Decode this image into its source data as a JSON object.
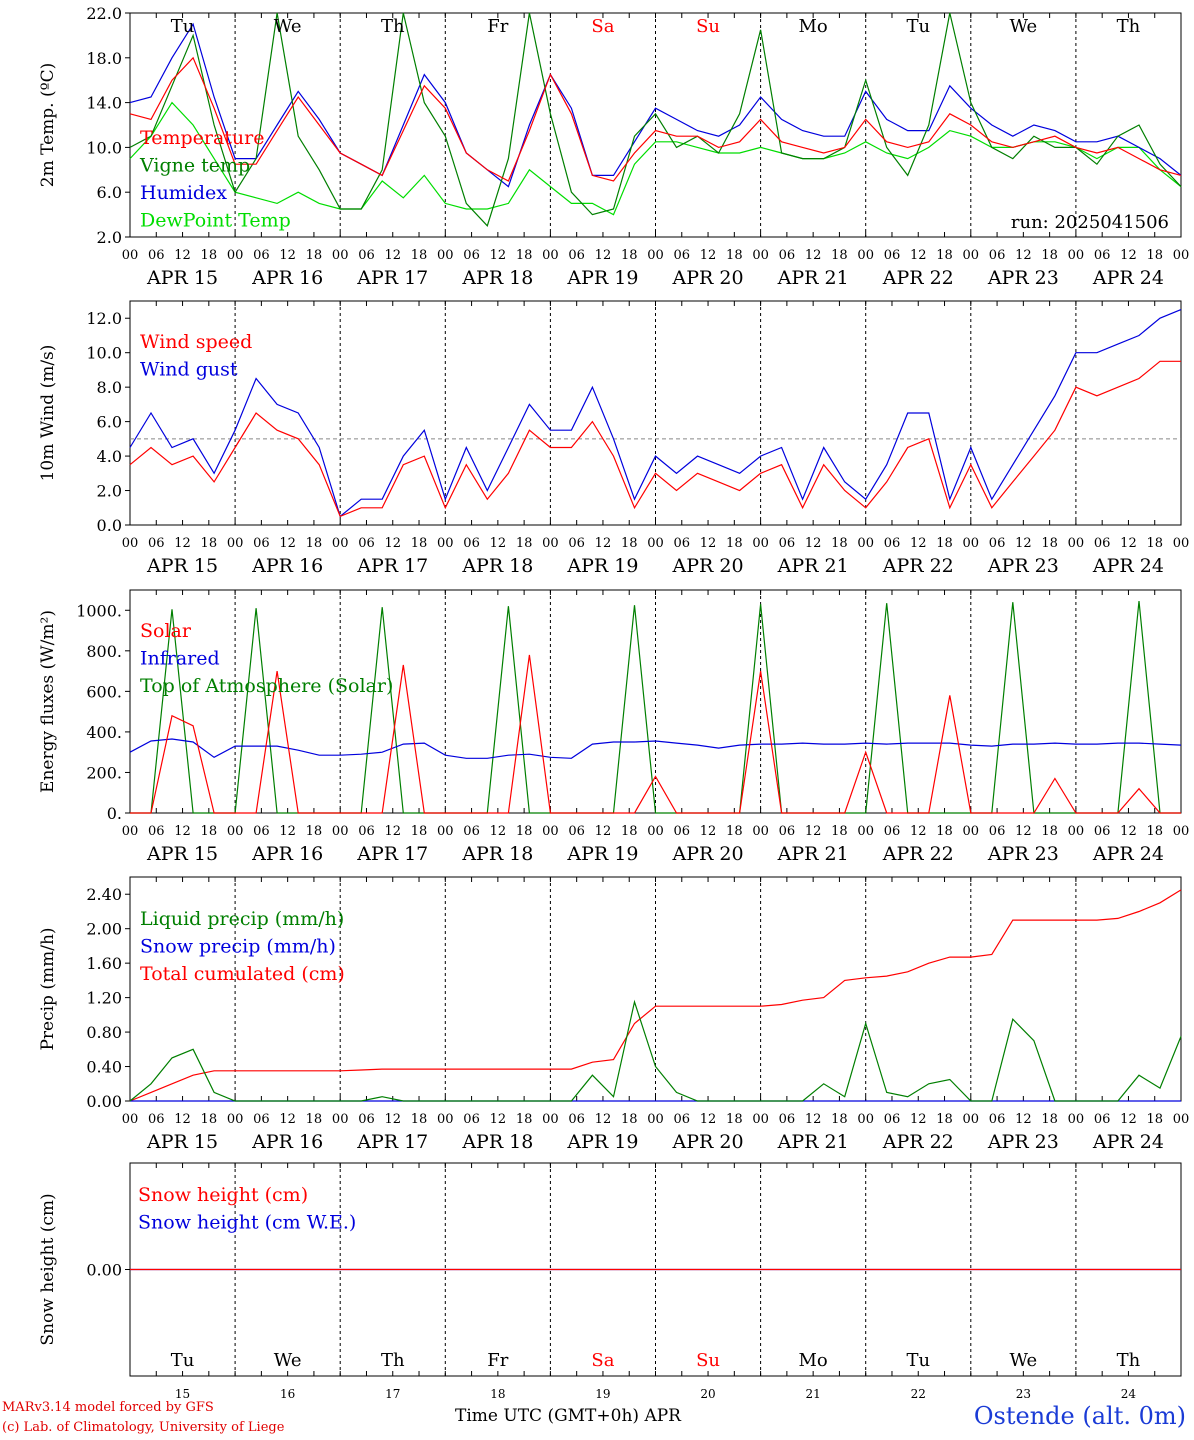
{
  "run_label": "run: 2025041506",
  "days": [
    "Tu",
    "We",
    "Th",
    "Fr",
    "Sa",
    "Su",
    "Mo",
    "Tu",
    "We",
    "Th"
  ],
  "weekend_indices": [
    4,
    5
  ],
  "day_numbers": [
    "15",
    "16",
    "17",
    "18",
    "19",
    "20",
    "21",
    "22",
    "23",
    "24"
  ],
  "date_labels": [
    "APR 15",
    "APR 16",
    "APR 17",
    "APR 18",
    "APR 19",
    "APR 20",
    "APR 21",
    "APR 22",
    "APR 23",
    "APR 24"
  ],
  "hour_ticks": [
    "00",
    "06",
    "12",
    "18"
  ],
  "last_hour": "00",
  "x_axis_title": "Time UTC (GMT+0h)",
  "x_axis_month": "APR",
  "credit_line1": "MARv3.14 model forced by GFS",
  "credit_line2": "(c) Lab. of Climatology, University of Liege",
  "station": "Ostende (alt. 0m)",
  "colors": {
    "red": "#ff0000",
    "green": "#007f00",
    "blue": "#0000dd",
    "lightgreen": "#00dd00",
    "weekend": "#ff0000"
  },
  "chart_data": [
    {
      "type": "line",
      "ylabel": "2m Temp. (ºC)",
      "ylim": [
        2,
        22
      ],
      "yticks": [
        "2.0",
        "6.0",
        "10.0",
        "14.0",
        "18.0",
        "22.0"
      ],
      "ytick_values": [
        2,
        6,
        10,
        14,
        18,
        22
      ],
      "legend_placement": "top-left",
      "x_hours_step": 6,
      "series": [
        {
          "name": "Temperature",
          "color": "red",
          "values": [
            13.0,
            12.5,
            16.0,
            18.0,
            13.5,
            8.5,
            8.5,
            11.5,
            14.5,
            12.0,
            9.5,
            8.5,
            7.5,
            11.5,
            15.5,
            13.5,
            9.5,
            8.0,
            7.0,
            11.5,
            16.5,
            13.0,
            7.5,
            7.0,
            9.5,
            11.5,
            11.0,
            11.0,
            10.0,
            10.5,
            12.5,
            10.5,
            10.0,
            9.5,
            10.0,
            12.5,
            10.5,
            10.0,
            10.5,
            13.0,
            12.0,
            10.5,
            10.0,
            10.5,
            11.0,
            10.0,
            9.5,
            10.0,
            9.0,
            8.0,
            7.5
          ]
        },
        {
          "name": "Vigne temp",
          "color": "green",
          "values": [
            10.0,
            11.0,
            15.5,
            20.0,
            12.0,
            6.0,
            9.0,
            22.0,
            11.0,
            8.0,
            4.5,
            4.5,
            8.0,
            22.0,
            14.0,
            11.0,
            5.0,
            3.0,
            9.0,
            22.0,
            13.0,
            6.0,
            4.0,
            4.5,
            11.0,
            13.0,
            10.0,
            11.0,
            9.5,
            13.0,
            20.5,
            9.5,
            9.0,
            9.0,
            10.0,
            16.0,
            10.0,
            7.5,
            12.0,
            22.0,
            14.0,
            10.0,
            9.0,
            11.0,
            10.0,
            10.0,
            8.5,
            11.0,
            12.0,
            8.5,
            6.5
          ]
        },
        {
          "name": "Humidex",
          "color": "blue",
          "values": [
            14.0,
            14.5,
            18.0,
            21.0,
            14.5,
            9.0,
            9.0,
            12.0,
            15.0,
            12.5,
            9.5,
            8.5,
            7.5,
            12.0,
            16.5,
            14.0,
            9.5,
            8.0,
            6.5,
            12.0,
            16.5,
            13.5,
            7.5,
            7.5,
            10.5,
            13.5,
            12.5,
            11.5,
            11.0,
            12.0,
            14.5,
            12.5,
            11.5,
            11.0,
            11.0,
            15.0,
            12.5,
            11.5,
            11.5,
            15.5,
            13.5,
            12.0,
            11.0,
            12.0,
            11.5,
            10.5,
            10.5,
            11.0,
            10.0,
            9.0,
            7.5
          ]
        },
        {
          "name": "DewPoint Temp",
          "color": "lightgreen",
          "values": [
            9.0,
            11.0,
            14.0,
            12.0,
            9.0,
            6.0,
            5.5,
            5.0,
            6.0,
            5.0,
            4.5,
            4.5,
            7.0,
            5.5,
            7.5,
            5.0,
            4.5,
            4.5,
            5.0,
            8.0,
            6.5,
            5.0,
            5.0,
            4.0,
            8.5,
            10.5,
            10.5,
            10.0,
            9.5,
            9.5,
            10.0,
            9.5,
            9.0,
            9.0,
            9.5,
            10.5,
            9.5,
            9.0,
            10.0,
            11.5,
            11.0,
            10.0,
            10.0,
            10.5,
            10.5,
            10.0,
            9.0,
            10.0,
            10.0,
            8.0,
            6.5
          ]
        }
      ]
    },
    {
      "type": "line",
      "ylabel": "10m Wind (m/s)",
      "ylim": [
        0,
        13
      ],
      "yticks": [
        "0.0",
        "2.0",
        "4.0",
        "6.0",
        "8.0",
        "10.0",
        "12.0"
      ],
      "ytick_values": [
        0,
        2,
        4,
        6,
        8,
        10,
        12
      ],
      "reference_line": 5.0,
      "legend_placement": "top-left",
      "x_hours_step": 6,
      "series": [
        {
          "name": "Wind speed",
          "color": "red",
          "values": [
            3.5,
            4.5,
            3.5,
            4.0,
            2.5,
            4.5,
            6.5,
            5.5,
            5.0,
            3.5,
            0.5,
            1.0,
            1.0,
            3.5,
            4.0,
            1.0,
            3.5,
            1.5,
            3.0,
            5.5,
            4.5,
            4.5,
            6.0,
            4.0,
            1.0,
            3.0,
            2.0,
            3.0,
            2.5,
            2.0,
            3.0,
            3.5,
            1.0,
            3.5,
            2.0,
            1.0,
            2.5,
            4.5,
            5.0,
            1.0,
            3.5,
            1.0,
            2.5,
            4.0,
            5.5,
            8.0,
            7.5,
            8.0,
            8.5,
            9.5,
            9.5
          ]
        },
        {
          "name": "Wind gust",
          "color": "blue",
          "values": [
            4.5,
            6.5,
            4.5,
            5.0,
            3.0,
            5.5,
            8.5,
            7.0,
            6.5,
            4.5,
            0.5,
            1.5,
            1.5,
            4.0,
            5.5,
            1.5,
            4.5,
            2.0,
            4.5,
            7.0,
            5.5,
            5.5,
            8.0,
            5.0,
            1.5,
            4.0,
            3.0,
            4.0,
            3.5,
            3.0,
            4.0,
            4.5,
            1.5,
            4.5,
            2.5,
            1.5,
            3.5,
            6.5,
            6.5,
            1.5,
            4.5,
            1.5,
            3.5,
            5.5,
            7.5,
            10.0,
            10.0,
            10.5,
            11.0,
            12.0,
            12.5
          ]
        }
      ]
    },
    {
      "type": "line",
      "ylabel": "Energy fluxes (W/m²)",
      "ylim": [
        0,
        1100
      ],
      "yticks": [
        "0.",
        "200.",
        "400.",
        "600.",
        "800.",
        "1000."
      ],
      "ytick_values": [
        0,
        200,
        400,
        600,
        800,
        1000
      ],
      "legend_placement": "top-left",
      "x_hours_step": 6,
      "series": [
        {
          "name": "Solar",
          "color": "red",
          "values": [
            0,
            0,
            480,
            430,
            0,
            0,
            0,
            700,
            0,
            0,
            0,
            0,
            0,
            730,
            0,
            0,
            0,
            0,
            0,
            780,
            0,
            0,
            0,
            0,
            0,
            180,
            0,
            0,
            0,
            0,
            700,
            0,
            0,
            0,
            0,
            300,
            0,
            0,
            0,
            580,
            0,
            0,
            0,
            0,
            170,
            0,
            0,
            0,
            120,
            0,
            0
          ]
        },
        {
          "name": "Infrared",
          "color": "blue",
          "values": [
            300,
            355,
            365,
            350,
            275,
            330,
            330,
            330,
            310,
            285,
            285,
            290,
            300,
            340,
            345,
            285,
            270,
            270,
            285,
            290,
            275,
            270,
            340,
            350,
            350,
            355,
            345,
            335,
            320,
            335,
            340,
            340,
            345,
            340,
            340,
            345,
            340,
            345,
            345,
            345,
            335,
            330,
            340,
            340,
            345,
            340,
            340,
            345,
            345,
            340,
            335
          ]
        },
        {
          "name": "Top of Atmosphere (Solar)",
          "color": "green",
          "values": [
            0,
            0,
            1005,
            0,
            0,
            0,
            1010,
            0,
            0,
            0,
            0,
            0,
            1015,
            0,
            0,
            0,
            0,
            0,
            1020,
            0,
            0,
            0,
            0,
            0,
            1025,
            0,
            0,
            0,
            0,
            0,
            1030,
            0,
            0,
            0,
            0,
            0,
            1035,
            0,
            0,
            0,
            0,
            0,
            1040,
            0,
            0,
            0,
            0,
            0,
            1045,
            0,
            0
          ]
        }
      ]
    },
    {
      "type": "line",
      "ylabel": "Precip (mm/h)",
      "ylim": [
        0,
        2.6
      ],
      "yticks": [
        "0.00",
        "0.40",
        "0.80",
        "1.20",
        "1.60",
        "2.00",
        "2.40"
      ],
      "ytick_values": [
        0,
        0.4,
        0.8,
        1.2,
        1.6,
        2.0,
        2.4
      ],
      "legend_placement": "top-left",
      "x_hours_step": 6,
      "series": [
        {
          "name": "Liquid precip (mm/h)",
          "color": "green",
          "values": [
            0,
            0.2,
            0.5,
            0.6,
            0.1,
            0,
            0,
            0,
            0,
            0,
            0,
            0,
            0.05,
            0,
            0,
            0,
            0,
            0,
            0,
            0,
            0,
            0,
            0.3,
            0.05,
            1.15,
            0.4,
            0.1,
            0,
            0,
            0,
            0,
            0,
            0,
            0.2,
            0.05,
            0.9,
            0.1,
            0.05,
            0.2,
            0.25,
            0,
            0,
            0.95,
            0.7,
            0,
            0,
            0,
            0,
            0.3,
            0.15,
            0.75
          ]
        },
        {
          "name": "Snow precip (mm/h)",
          "color": "blue",
          "values": [
            0,
            0,
            0,
            0,
            0,
            0,
            0,
            0,
            0,
            0,
            0,
            0,
            0,
            0,
            0,
            0,
            0,
            0,
            0,
            0,
            0,
            0,
            0,
            0,
            0,
            0,
            0,
            0,
            0,
            0,
            0,
            0,
            0,
            0,
            0,
            0,
            0,
            0,
            0,
            0,
            0,
            0,
            0,
            0,
            0,
            0,
            0,
            0,
            0,
            0,
            0
          ]
        },
        {
          "name": "Total cumulated (cm)",
          "color": "red",
          "values": [
            0,
            0.1,
            0.2,
            0.3,
            0.35,
            0.35,
            0.35,
            0.35,
            0.35,
            0.35,
            0.35,
            0.36,
            0.37,
            0.37,
            0.37,
            0.37,
            0.37,
            0.37,
            0.37,
            0.37,
            0.37,
            0.37,
            0.45,
            0.48,
            0.9,
            1.1,
            1.1,
            1.1,
            1.1,
            1.1,
            1.1,
            1.12,
            1.17,
            1.2,
            1.4,
            1.43,
            1.45,
            1.5,
            1.6,
            1.67,
            1.67,
            1.7,
            2.1,
            2.1,
            2.1,
            2.1,
            2.1,
            2.12,
            2.2,
            2.3,
            2.45
          ]
        }
      ]
    },
    {
      "type": "line",
      "ylabel": "Snow height (cm)",
      "yticks": [
        "0.00"
      ],
      "ytick_values": [
        0
      ],
      "ylim": [
        -1,
        1
      ],
      "legend_placement": "top-left",
      "x_hours_step": 6,
      "series": [
        {
          "name": "Snow height (cm)",
          "color": "red",
          "values": [
            0,
            0,
            0,
            0,
            0,
            0,
            0,
            0,
            0,
            0,
            0,
            0,
            0,
            0,
            0,
            0,
            0,
            0,
            0,
            0,
            0,
            0,
            0,
            0,
            0,
            0,
            0,
            0,
            0,
            0,
            0,
            0,
            0,
            0,
            0,
            0,
            0,
            0,
            0,
            0,
            0,
            0,
            0,
            0,
            0,
            0,
            0,
            0,
            0,
            0,
            0
          ]
        },
        {
          "name": "Snow height (cm W.E.)",
          "color": "blue",
          "values": [
            0,
            0,
            0,
            0,
            0,
            0,
            0,
            0,
            0,
            0,
            0,
            0,
            0,
            0,
            0,
            0,
            0,
            0,
            0,
            0,
            0,
            0,
            0,
            0,
            0,
            0,
            0,
            0,
            0,
            0,
            0,
            0,
            0,
            0,
            0,
            0,
            0,
            0,
            0,
            0,
            0,
            0,
            0,
            0,
            0,
            0,
            0,
            0,
            0,
            0,
            0
          ]
        }
      ]
    }
  ]
}
